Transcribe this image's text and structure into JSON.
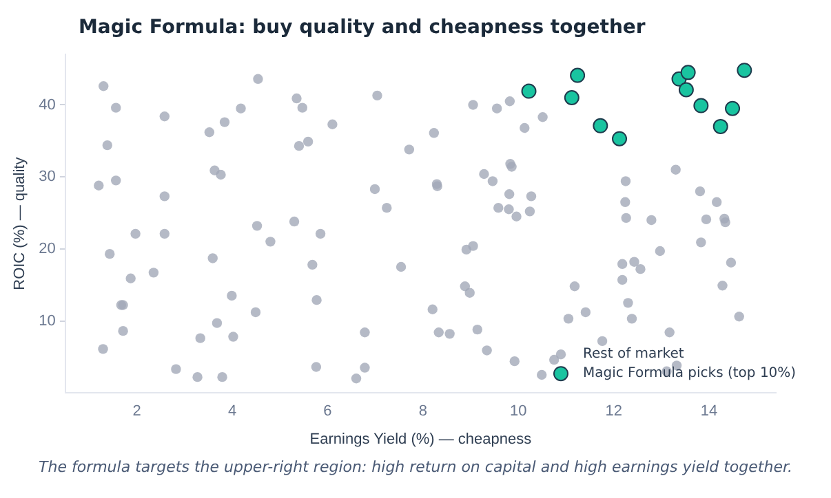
{
  "chart_data": {
    "type": "scatter",
    "title": "Magic Formula: buy quality and cheapness together",
    "xlabel": "Earnings Yield (%) — cheapness",
    "ylabel": "ROIC (%) — quality",
    "xlim": [
      0.5,
      15.4
    ],
    "xticks": [
      2,
      4,
      6,
      8,
      10,
      12,
      14
    ],
    "ylim": [
      0,
      47
    ],
    "yticks": [
      10,
      20,
      30,
      40
    ],
    "grid": false,
    "legend": "bottom right",
    "marker": "circle",
    "annotations": [
      "The formula targets the upper-right region: high return on capital and high earnings yield together."
    ],
    "series": [
      {
        "name": "Rest of market",
        "color": "#a3a9b8",
        "x": [
          1.3,
          1.56,
          2.58,
          1.38,
          1.2,
          1.56,
          2.58,
          1.97,
          2.58,
          1.43,
          4.54,
          4.18,
          3.52,
          3.84,
          3.63,
          3.76,
          5.35,
          5.47,
          5.4,
          5.59,
          6.1,
          7.04,
          6.99,
          7.24,
          4.52,
          4.8,
          5.3,
          5.85,
          3.59,
          7.71,
          1.87,
          2.35,
          1.67,
          1.71,
          1.71,
          1.29,
          2.82,
          3.27,
          3.79,
          3.33,
          3.68,
          4.02,
          3.99,
          4.49,
          5.68,
          5.77,
          5.76,
          6.78,
          6.6,
          6.78,
          7.54,
          9.05,
          9.55,
          9.82,
          10.51,
          10.13,
          8.23,
          9.83,
          9.86,
          9.28,
          9.46,
          8.29,
          8.3,
          9.81,
          10.27,
          9.58,
          9.8,
          10.24,
          9.96,
          8.91,
          9.05,
          12.25,
          13.3,
          12.24,
          13.81,
          14.16,
          12.26,
          12.79,
          13.94,
          14.32,
          14.34,
          13.83,
          12.97,
          8.88,
          8.98,
          8.2,
          8.33,
          8.56,
          9.14,
          9.34,
          9.92,
          10.75,
          10.49,
          11.18,
          11.05,
          11.41,
          11.76,
          12.18,
          12.43,
          12.56,
          12.18,
          12.3,
          12.38,
          13.17,
          13.11,
          13.32,
          14.46,
          14.28,
          14.63
        ],
        "values": [
          42.6,
          39.6,
          38.4,
          34.4,
          28.8,
          29.5,
          27.3,
          22.1,
          22.1,
          19.3,
          43.6,
          39.5,
          36.2,
          37.6,
          30.9,
          30.3,
          40.9,
          39.6,
          34.3,
          34.9,
          37.3,
          41.3,
          28.3,
          25.7,
          23.2,
          21.0,
          23.8,
          22.1,
          18.7,
          33.8,
          15.9,
          16.7,
          12.2,
          12.2,
          8.6,
          6.1,
          3.3,
          2.2,
          2.2,
          7.6,
          9.7,
          7.8,
          13.5,
          11.2,
          17.8,
          12.9,
          3.6,
          3.5,
          2.0,
          8.4,
          17.5,
          40.0,
          39.5,
          40.5,
          38.3,
          36.8,
          36.1,
          31.8,
          31.4,
          30.4,
          29.4,
          29.0,
          28.7,
          27.6,
          27.3,
          25.7,
          25.5,
          25.2,
          24.5,
          19.9,
          20.4,
          29.4,
          31.0,
          26.5,
          28.0,
          26.5,
          24.3,
          24.0,
          24.1,
          24.2,
          23.7,
          20.9,
          19.7,
          14.8,
          13.9,
          11.6,
          8.4,
          8.2,
          8.8,
          5.9,
          4.4,
          4.6,
          2.5,
          14.8,
          10.3,
          11.2,
          7.2,
          17.9,
          18.2,
          17.2,
          15.7,
          12.5,
          10.3,
          8.4,
          3.0,
          3.8,
          18.1,
          14.9,
          10.6
        ]
      },
      {
        "name": "Magic Formula picks (top 10%)",
        "color": "#19c4a0",
        "x": [
          10.22,
          11.24,
          11.12,
          11.72,
          12.12,
          13.37,
          13.56,
          13.52,
          13.83,
          14.24,
          14.49,
          14.74
        ],
        "values": [
          41.9,
          44.1,
          41.0,
          37.1,
          35.3,
          43.6,
          44.5,
          42.1,
          39.9,
          37.0,
          39.5,
          44.8
        ]
      }
    ]
  }
}
